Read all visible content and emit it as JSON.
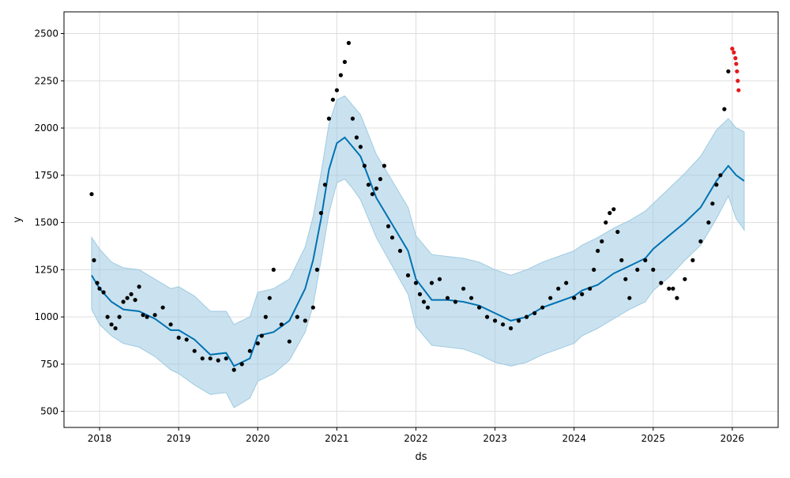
{
  "chart_data": {
    "type": "line",
    "title": "",
    "xlabel": "ds",
    "ylabel": "y",
    "xlim": [
      2017.55,
      2026.58
    ],
    "ylim": [
      415,
      2615
    ],
    "grid": true,
    "x_ticks": [
      {
        "value": 2018,
        "label": "2018"
      },
      {
        "value": 2019,
        "label": "2019"
      },
      {
        "value": 2020,
        "label": "2020"
      },
      {
        "value": 2021,
        "label": "2021"
      },
      {
        "value": 2022,
        "label": "2022"
      },
      {
        "value": 2023,
        "label": "2023"
      },
      {
        "value": 2024,
        "label": "2024"
      },
      {
        "value": 2025,
        "label": "2025"
      },
      {
        "value": 2026,
        "label": "2026"
      }
    ],
    "y_ticks": [
      {
        "value": 500,
        "label": "500"
      },
      {
        "value": 750,
        "label": "750"
      },
      {
        "value": 1000,
        "label": "1000"
      },
      {
        "value": 1250,
        "label": "1250"
      },
      {
        "value": 1500,
        "label": "1500"
      },
      {
        "value": 1750,
        "label": "1750"
      },
      {
        "value": 2000,
        "label": "2000"
      },
      {
        "value": 2250,
        "label": "2250"
      },
      {
        "value": 2500,
        "label": "2500"
      }
    ],
    "colors": {
      "forecast_line": "#0072B2",
      "interval_fill": "#9ecae1",
      "observed_points": "#000000",
      "recent_points": "#e31a1c",
      "grid": "#dddddd"
    },
    "forecast": {
      "x": [
        2017.9,
        2018.0,
        2018.15,
        2018.3,
        2018.5,
        2018.7,
        2018.9,
        2019.0,
        2019.2,
        2019.4,
        2019.6,
        2019.7,
        2019.9,
        2020.0,
        2020.2,
        2020.4,
        2020.6,
        2020.7,
        2020.8,
        2020.9,
        2021.0,
        2021.1,
        2021.2,
        2021.3,
        2021.5,
        2021.7,
        2021.9,
        2022.0,
        2022.2,
        2022.4,
        2022.6,
        2022.8,
        2023.0,
        2023.2,
        2023.4,
        2023.6,
        2023.8,
        2024.0,
        2024.1,
        2024.3,
        2024.5,
        2024.7,
        2024.9,
        2025.0,
        2025.2,
        2025.4,
        2025.6,
        2025.8,
        2025.95,
        2026.05,
        2026.15
      ],
      "yhat": [
        1220,
        1150,
        1080,
        1040,
        1030,
        990,
        930,
        930,
        880,
        800,
        810,
        740,
        780,
        900,
        920,
        980,
        1150,
        1300,
        1520,
        1780,
        1920,
        1950,
        1900,
        1850,
        1630,
        1490,
        1350,
        1200,
        1090,
        1090,
        1080,
        1060,
        1020,
        980,
        1000,
        1050,
        1080,
        1110,
        1140,
        1170,
        1230,
        1270,
        1310,
        1360,
        1430,
        1500,
        1580,
        1720,
        1800,
        1750,
        1720
      ],
      "lower": [
        1040,
        960,
        900,
        860,
        840,
        790,
        720,
        700,
        640,
        590,
        600,
        520,
        570,
        660,
        700,
        770,
        920,
        1060,
        1300,
        1550,
        1710,
        1730,
        1680,
        1620,
        1420,
        1270,
        1120,
        950,
        850,
        840,
        830,
        800,
        760,
        740,
        760,
        800,
        830,
        860,
        900,
        940,
        990,
        1040,
        1080,
        1140,
        1210,
        1300,
        1380,
        1520,
        1640,
        1520,
        1460
      ],
      "upper": [
        1420,
        1360,
        1290,
        1260,
        1250,
        1200,
        1150,
        1160,
        1110,
        1030,
        1030,
        960,
        1000,
        1130,
        1150,
        1200,
        1370,
        1530,
        1760,
        2020,
        2150,
        2170,
        2120,
        2070,
        1860,
        1720,
        1580,
        1430,
        1330,
        1320,
        1310,
        1290,
        1250,
        1220,
        1250,
        1290,
        1320,
        1350,
        1380,
        1420,
        1470,
        1510,
        1560,
        1600,
        1680,
        1760,
        1850,
        1990,
        2050,
        2000,
        1980
      ]
    },
    "observed": {
      "x": [
        2017.9,
        2017.93,
        2017.97,
        2018.0,
        2018.05,
        2018.1,
        2018.15,
        2018.2,
        2018.25,
        2018.3,
        2018.35,
        2018.4,
        2018.45,
        2018.5,
        2018.55,
        2018.6,
        2018.7,
        2018.8,
        2018.9,
        2019.0,
        2019.1,
        2019.2,
        2019.3,
        2019.4,
        2019.5,
        2019.6,
        2019.7,
        2019.8,
        2019.9,
        2020.0,
        2020.05,
        2020.1,
        2020.15,
        2020.2,
        2020.3,
        2020.4,
        2020.5,
        2020.6,
        2020.7,
        2020.75,
        2020.8,
        2020.85,
        2020.9,
        2020.95,
        2021.0,
        2021.05,
        2021.1,
        2021.15,
        2021.2,
        2021.25,
        2021.3,
        2021.35,
        2021.4,
        2021.45,
        2021.5,
        2021.55,
        2021.6,
        2021.65,
        2021.7,
        2021.8,
        2021.9,
        2022.0,
        2022.05,
        2022.1,
        2022.15,
        2022.2,
        2022.3,
        2022.4,
        2022.5,
        2022.6,
        2022.7,
        2022.8,
        2022.9,
        2023.0,
        2023.1,
        2023.2,
        2023.3,
        2023.4,
        2023.5,
        2023.6,
        2023.7,
        2023.8,
        2023.9,
        2024.0,
        2024.1,
        2024.2,
        2024.25,
        2024.3,
        2024.35,
        2024.4,
        2024.45,
        2024.5,
        2024.55,
        2024.6,
        2024.65,
        2024.7,
        2024.8,
        2024.9,
        2025.0,
        2025.1,
        2025.2,
        2025.25,
        2025.3,
        2025.4,
        2025.5,
        2025.6,
        2025.7,
        2025.75,
        2025.8,
        2025.85,
        2025.9,
        2025.95
      ],
      "y": [
        1650,
        1300,
        1180,
        1150,
        1130,
        1000,
        960,
        940,
        1000,
        1080,
        1100,
        1120,
        1090,
        1160,
        1010,
        1000,
        1010,
        1050,
        960,
        890,
        880,
        820,
        780,
        780,
        770,
        780,
        720,
        750,
        820,
        860,
        900,
        1000,
        1100,
        1250,
        960,
        870,
        1000,
        980,
        1050,
        1250,
        1550,
        1700,
        2050,
        2150,
        2200,
        2280,
        2350,
        2450,
        2050,
        1950,
        1900,
        1800,
        1700,
        1650,
        1680,
        1730,
        1800,
        1480,
        1420,
        1350,
        1220,
        1180,
        1120,
        1080,
        1050,
        1180,
        1200,
        1100,
        1080,
        1150,
        1100,
        1050,
        1000,
        980,
        960,
        940,
        980,
        1000,
        1020,
        1050,
        1100,
        1150,
        1180,
        1100,
        1120,
        1150,
        1250,
        1350,
        1400,
        1500,
        1550,
        1570,
        1450,
        1300,
        1200,
        1100,
        1250,
        1300,
        1250,
        1180,
        1150,
        1150,
        1100,
        1200,
        1300,
        1400,
        1500,
        1600,
        1700,
        1750,
        2100,
        2300
      ]
    },
    "recent": {
      "x": [
        2026.0,
        2026.02,
        2026.04,
        2026.05,
        2026.06,
        2026.07,
        2026.08
      ],
      "y": [
        2420,
        2400,
        2370,
        2340,
        2300,
        2250,
        2200
      ]
    }
  }
}
